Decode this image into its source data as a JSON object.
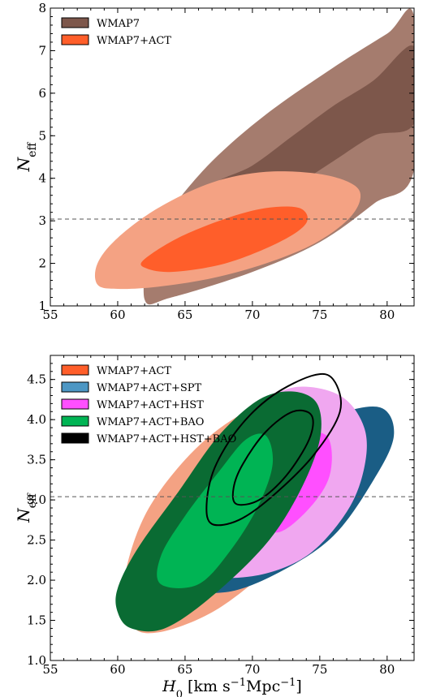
{
  "chart_data": [
    {
      "type": "contour",
      "xlim": [
        55,
        82
      ],
      "ylim": [
        1,
        8
      ],
      "xticks": [
        55,
        60,
        65,
        70,
        75,
        80
      ],
      "yticks": [
        1,
        2,
        3,
        4,
        5,
        6,
        7,
        8
      ],
      "xlabel": "",
      "ylabel": "N_eff",
      "reference_line": {
        "y": 3.04,
        "style": "dashed"
      },
      "legend": {
        "position": "top-left"
      },
      "series": [
        {
          "name": "WMAP7",
          "colors": {
            "outer": "#a57c6e",
            "inner": "#7d574b"
          },
          "contours": {
            "outer": [
              [
                62,
                1.15
              ],
              [
                64,
                1.2
              ],
              [
                70,
                1.8
              ],
              [
                75,
                2.5
              ],
              [
                79,
                3.4
              ],
              [
                82,
                4.2
              ],
              [
                82,
                7.8
              ],
              [
                80,
                7.4
              ],
              [
                76,
                6.6
              ],
              [
                71,
                5.5
              ],
              [
                67,
                4.4
              ],
              [
                64,
                3.3
              ],
              [
                62.5,
                2.6
              ]
            ],
            "inner": [
              [
                69,
                3.2
              ],
              [
                72,
                3.6
              ],
              [
                76,
                4.4
              ],
              [
                79,
                5.0
              ],
              [
                82,
                5.3
              ],
              [
                82,
                7.1
              ],
              [
                79,
                6.3
              ],
              [
                76,
                5.7
              ],
              [
                73,
                5.0
              ],
              [
                70,
                4.3
              ],
              [
                67,
                3.8
              ]
            ]
          }
        },
        {
          "name": "WMAP7+ACT",
          "colors": {
            "outer": "#f4a283",
            "inner": "#ff5e2a"
          },
          "contours": {
            "outer": [
              [
                58.5,
                1.5
              ],
              [
                60,
                1.4
              ],
              [
                63,
                1.45
              ],
              [
                67,
                1.65
              ],
              [
                71,
                2.0
              ],
              [
                74.5,
                2.45
              ],
              [
                77,
                3.0
              ],
              [
                78,
                3.5
              ],
              [
                77.5,
                3.85
              ],
              [
                75,
                4.1
              ],
              [
                71,
                4.15
              ],
              [
                67,
                3.9
              ],
              [
                63,
                3.3
              ],
              [
                60,
                2.6
              ],
              [
                58.5,
                2.0
              ]
            ],
            "inner": [
              [
                62,
                1.9
              ],
              [
                64,
                1.8
              ],
              [
                68,
                2.0
              ],
              [
                72,
                2.5
              ],
              [
                74,
                2.95
              ],
              [
                73.5,
                3.3
              ],
              [
                71,
                3.3
              ],
              [
                68,
                3.05
              ],
              [
                64.5,
                2.6
              ],
              [
                62,
                2.1
              ]
            ]
          }
        }
      ]
    },
    {
      "type": "contour",
      "xlim": [
        55,
        82
      ],
      "ylim": [
        1.0,
        4.8
      ],
      "xticks": [
        55,
        60,
        65,
        70,
        75,
        80
      ],
      "yticks": [
        1.0,
        1.5,
        2.0,
        2.5,
        3.0,
        3.5,
        4.0,
        4.5
      ],
      "xlabel": "H_0 [km s^-1 Mpc^-1]",
      "ylabel": "N_eff",
      "reference_line": {
        "y": 3.04,
        "style": "dashed"
      },
      "legend": {
        "position": "top-left"
      },
      "series": [
        {
          "name": "WMAP7+ACT",
          "colors": {
            "outer": "#f4a283",
            "inner": "#ff5e2a"
          },
          "contours": {
            "outer": [
              [
                61,
                1.45
              ],
              [
                63,
                1.35
              ],
              [
                67,
                1.6
              ],
              [
                71,
                2.1
              ],
              [
                74.5,
                2.65
              ],
              [
                76,
                3.2
              ],
              [
                76.5,
                3.7
              ],
              [
                75,
                4.1
              ],
              [
                72,
                4.25
              ],
              [
                68.5,
                4.0
              ],
              [
                65,
                3.5
              ],
              [
                62,
                2.8
              ],
              [
                60.5,
                2.0
              ]
            ],
            "inner": []
          }
        },
        {
          "name": "WMAP7+ACT+SPT",
          "colors": {
            "outer": "#1a5d85",
            "inner": "#4d97c4"
          },
          "contours": {
            "outer": [
              [
                64.5,
                1.95
              ],
              [
                68,
                1.85
              ],
              [
                72,
                2.1
              ],
              [
                76,
                2.55
              ],
              [
                79,
                3.25
              ],
              [
                80.5,
                3.8
              ],
              [
                79.5,
                4.15
              ],
              [
                76,
                4.05
              ],
              [
                72,
                3.7
              ],
              [
                68,
                3.1
              ],
              [
                65.5,
                2.5
              ]
            ],
            "inner": []
          }
        },
        {
          "name": "WMAP7+ACT+HST",
          "colors": {
            "outer": "#f0a7f0",
            "inner": "#ff4fff"
          },
          "contours": {
            "outer": [
              [
                67,
                2.15
              ],
              [
                70,
                2.05
              ],
              [
                74,
                2.3
              ],
              [
                77,
                2.85
              ],
              [
                78.3,
                3.4
              ],
              [
                78.3,
                3.9
              ],
              [
                76.5,
                4.3
              ],
              [
                73,
                4.4
              ],
              [
                70,
                4.1
              ],
              [
                68,
                3.6
              ],
              [
                67,
                3.0
              ]
            ],
            "inner": [
              [
                70,
                2.75
              ],
              [
                72,
                2.6
              ],
              [
                74.5,
                2.95
              ],
              [
                75.8,
                3.35
              ],
              [
                75.5,
                3.8
              ],
              [
                73,
                3.8
              ],
              [
                71,
                3.45
              ],
              [
                70,
                3.05
              ]
            ]
          }
        },
        {
          "name": "WMAP7+ACT+BAO",
          "colors": {
            "outer": "#0a6b33",
            "inner": "#00b454"
          },
          "contours": {
            "outer": [
              [
                60,
                1.6
              ],
              [
                61,
                1.4
              ],
              [
                63.5,
                1.4
              ],
              [
                67,
                1.8
              ],
              [
                71,
                2.45
              ],
              [
                73.5,
                3.1
              ],
              [
                75,
                3.75
              ],
              [
                74.8,
                4.2
              ],
              [
                73,
                4.35
              ],
              [
                70.5,
                4.25
              ],
              [
                67.5,
                3.8
              ],
              [
                64.5,
                3.1
              ],
              [
                61.5,
                2.4
              ],
              [
                60,
                1.9
              ]
            ],
            "inner": [
              [
                63.2,
                1.95
              ],
              [
                66,
                1.95
              ],
              [
                68.5,
                2.4
              ],
              [
                70.5,
                2.95
              ],
              [
                71.5,
                3.45
              ],
              [
                71,
                3.8
              ],
              [
                69.5,
                3.75
              ],
              [
                67.5,
                3.35
              ],
              [
                65,
                2.8
              ],
              [
                63.2,
                2.3
              ]
            ]
          }
        },
        {
          "name": "WMAP7+ACT+HST+BAO",
          "colors": {
            "outer": "#000000",
            "inner": "#000000"
          },
          "contours": {
            "outer": [
              [
                67,
                2.7
              ],
              [
                69,
                2.75
              ],
              [
                71.5,
                3.05
              ],
              [
                74.5,
                3.55
              ],
              [
                76.5,
                4.1
              ],
              [
                76,
                4.5
              ],
              [
                74.5,
                4.55
              ],
              [
                71.5,
                4.3
              ],
              [
                69,
                3.9
              ],
              [
                67.2,
                3.4
              ],
              [
                66.6,
                2.95
              ]
            ],
            "inner": [
              [
                68.8,
                2.95
              ],
              [
                70.5,
                3.0
              ],
              [
                72.5,
                3.3
              ],
              [
                74.2,
                3.75
              ],
              [
                74.4,
                4.05
              ],
              [
                73,
                4.1
              ],
              [
                71,
                3.85
              ],
              [
                69.3,
                3.45
              ],
              [
                68.6,
                3.15
              ]
            ]
          }
        }
      ]
    }
  ]
}
